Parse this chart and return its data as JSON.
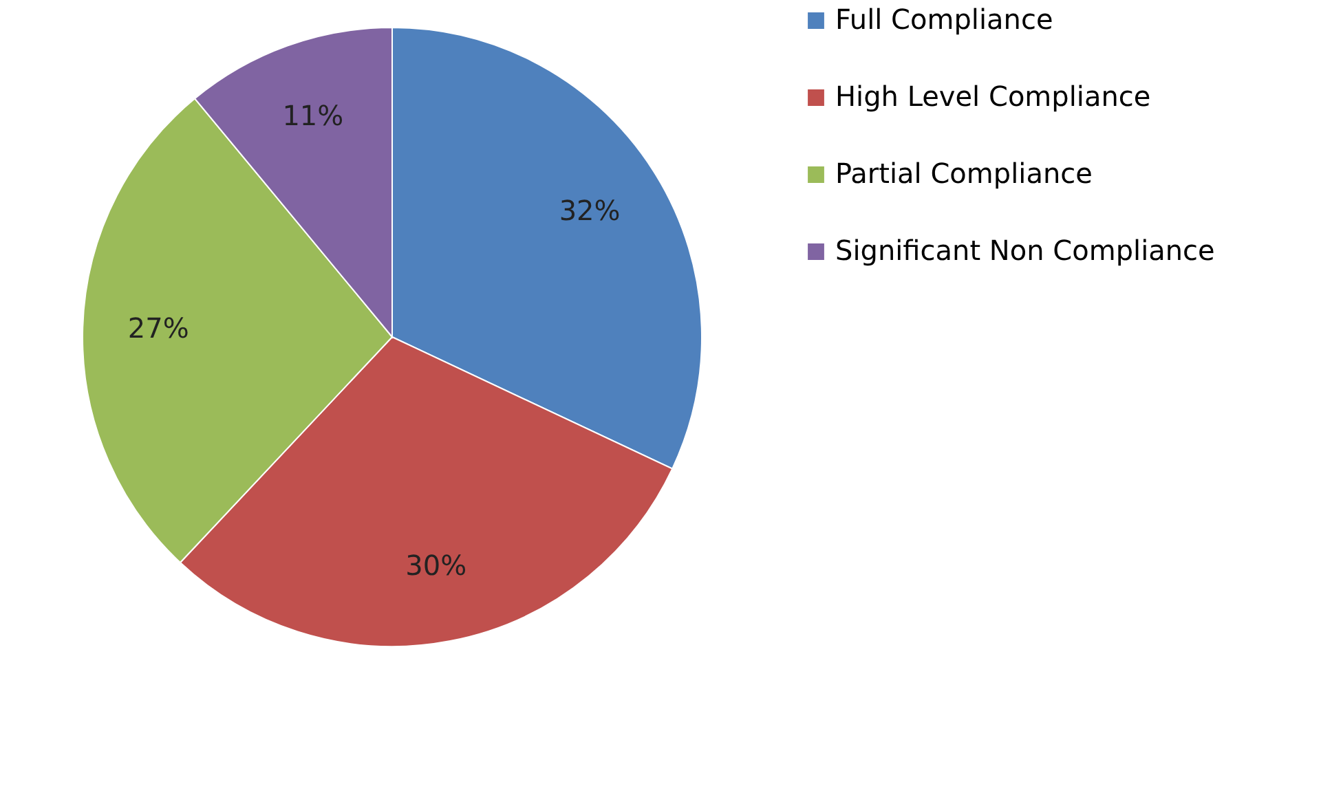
{
  "chart_data": {
    "type": "pie",
    "categories": [
      "Full Compliance",
      "High Level Compliance",
      "Partial Compliance",
      "Significant Non Compliance"
    ],
    "values": [
      32,
      30,
      27,
      11
    ],
    "value_labels": [
      "32%",
      "30%",
      "27%",
      "11%"
    ],
    "colors": [
      "#4f81bd",
      "#c0504d",
      "#9bbb59",
      "#8064a2"
    ],
    "legend": "right"
  }
}
